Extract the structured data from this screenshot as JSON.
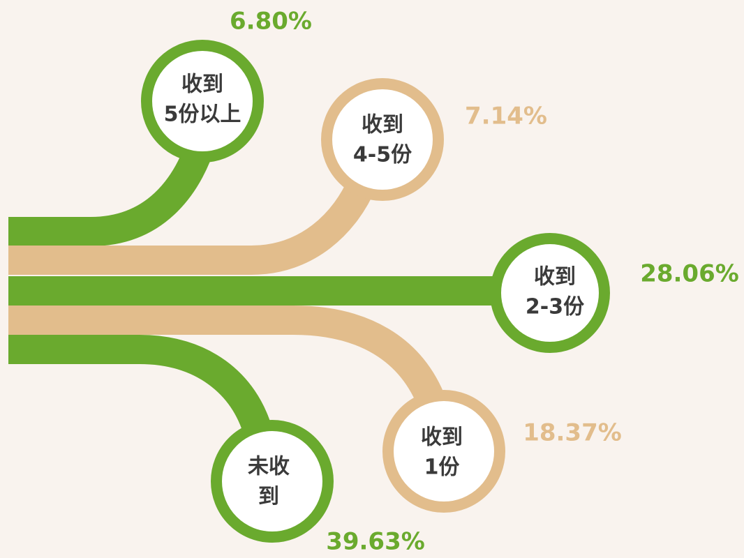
{
  "nodes": [
    {
      "label": [
        "收到",
        "5份以上"
      ],
      "value": "6.80%"
    },
    {
      "label": [
        "收到",
        "4-5份"
      ],
      "value": "7.14%"
    },
    {
      "label": [
        "收到",
        "2-3份"
      ],
      "value": "28.06%"
    },
    {
      "label": [
        "收到",
        "1份"
      ],
      "value": "18.37%"
    },
    {
      "label": [
        "未收",
        "到"
      ],
      "value": "39.63%"
    }
  ]
}
